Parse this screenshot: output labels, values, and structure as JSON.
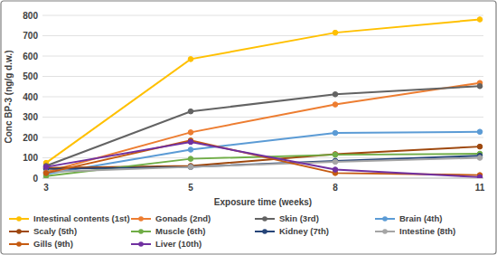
{
  "chart_data": {
    "type": "line",
    "x_label": "Exposure time (weeks)",
    "y_label": "Conc BP-3 (ng/g d.w.)",
    "categories": [
      "3",
      "5",
      "8",
      "11"
    ],
    "ylim": [
      0,
      800
    ],
    "yticks": [
      0,
      100,
      200,
      300,
      400,
      500,
      600,
      700,
      800
    ],
    "grid": true,
    "legend": "bottom",
    "marker": "circle",
    "series": [
      {
        "name": "Intestinal contents (1st)",
        "color": "#ffc000",
        "values": [
          75,
          585,
          715,
          780
        ]
      },
      {
        "name": "Gonads (2nd)",
        "color": "#ed7d31",
        "values": [
          30,
          225,
          362,
          468
        ]
      },
      {
        "name": "Skin (3rd)",
        "color": "#636363",
        "values": [
          60,
          328,
          412,
          452
        ]
      },
      {
        "name": "Brain (4th)",
        "color": "#5b9bd5",
        "values": [
          20,
          140,
          222,
          228
        ]
      },
      {
        "name": "Scaly (5th)",
        "color": "#9e480e",
        "values": [
          50,
          60,
          118,
          155
        ]
      },
      {
        "name": "Muscle (6th)",
        "color": "#70ad47",
        "values": [
          10,
          95,
          115,
          120
        ]
      },
      {
        "name": "Kidney (7th)",
        "color": "#264478",
        "values": [
          45,
          55,
          85,
          110
        ]
      },
      {
        "name": "Intestine (8th)",
        "color": "#a5a5a5",
        "values": [
          30,
          55,
          80,
          100
        ]
      },
      {
        "name": "Gills (9th)",
        "color": "#c55a11",
        "values": [
          25,
          185,
          25,
          15
        ]
      },
      {
        "name": "Liver (10th)",
        "color": "#7030a0",
        "values": [
          55,
          178,
          42,
          5
        ]
      }
    ]
  }
}
